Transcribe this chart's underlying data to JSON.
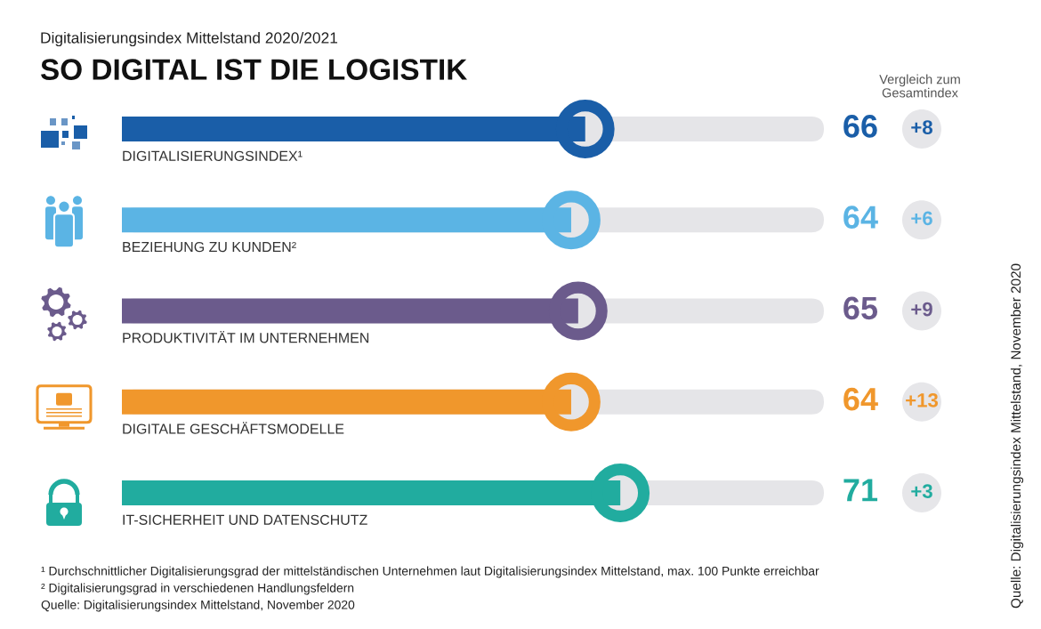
{
  "chart_data": {
    "type": "bar",
    "orientation": "horizontal",
    "title": "SO DIGITAL IST DIE LOGISTIK",
    "subtitle": "Digitalisierungsindex Mittelstand 2020/2021",
    "categories": [
      "DIGITALISIERUNGSINDEX¹",
      "BEZIEHUNG ZU KUNDEN²",
      "PRODUKTIVITÄT IM UNTERNEHMEN",
      "DIGITALE GESCHÄFTSMODELLE",
      "IT-SICHERHEIT UND DATENSCHUTZ"
    ],
    "values": [
      66,
      64,
      65,
      64,
      71
    ],
    "colors": [
      "#1a5ea8",
      "#5bb4e4",
      "#6b5b8c",
      "#f0972c",
      "#21ac9f"
    ],
    "xlim": [
      0,
      100
    ],
    "data_labels": true,
    "marker": "circle",
    "tick_labels": "y",
    "annotations": [
      "Vergleich zum\nGesamtindex",
      "+8",
      "+6",
      "+9",
      "+13",
      "+3",
      "¹ Durchschnittlicher Digitalisierungsgrad der mittelständischen Unternehmen laut Digitalisierungsindex Mittelstand, max. 100 Punkte erreichbar",
      "² Digitalisierungsgrad in verschiedenen Handlungsfeldern",
      "Quelle: Digitalisierungsindex Mittelstand, November 2020",
      "Quelle: Digitalisierungsindex Mittelstand, November 2020"
    ]
  }
}
